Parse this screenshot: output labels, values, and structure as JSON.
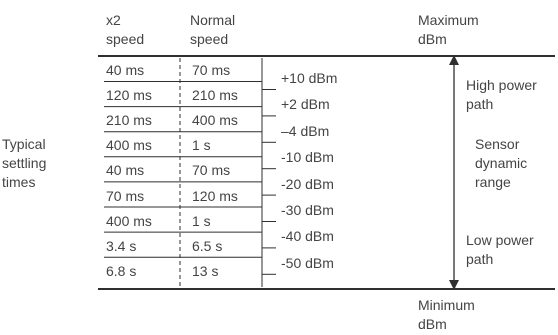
{
  "headers": {
    "x2_line1": "x2",
    "x2_line2": "speed",
    "normal_line1": "Normal",
    "normal_line2": "speed",
    "max_line1": "Maximum",
    "max_line2": "dBm",
    "min_line1": "Minimum",
    "min_line2": "dBm"
  },
  "left_label": [
    "Typical",
    "settling",
    "times"
  ],
  "rows": [
    {
      "x2": "40 ms",
      "normal": "70 ms"
    },
    {
      "x2": "120 ms",
      "normal": "210 ms"
    },
    {
      "x2": "210 ms",
      "normal": "400 ms"
    },
    {
      "x2": "400 ms",
      "normal": "1 s"
    },
    {
      "x2": "40 ms",
      "normal": "70 ms"
    },
    {
      "x2": "70 ms",
      "normal": "120 ms"
    },
    {
      "x2": "400 ms",
      "normal": "1 s"
    },
    {
      "x2": "3.4 s",
      "normal": "6.5 s"
    },
    {
      "x2": "6.8 s",
      "normal": "13 s"
    }
  ],
  "dbm_levels": [
    "+10 dBm",
    "+2 dBm",
    "–4 dBm",
    "-10 dBm",
    "-20 dBm",
    "-30 dBm",
    "-40 dBm",
    "-50 dBm"
  ],
  "right_labels": {
    "high_power": [
      "High power",
      "path"
    ],
    "dynamic_range": [
      "Sensor",
      "dynamic",
      "range"
    ],
    "low_power": [
      "Low power",
      "path"
    ]
  },
  "colors": {
    "line": "#2f2f2f",
    "text": "#444444"
  }
}
